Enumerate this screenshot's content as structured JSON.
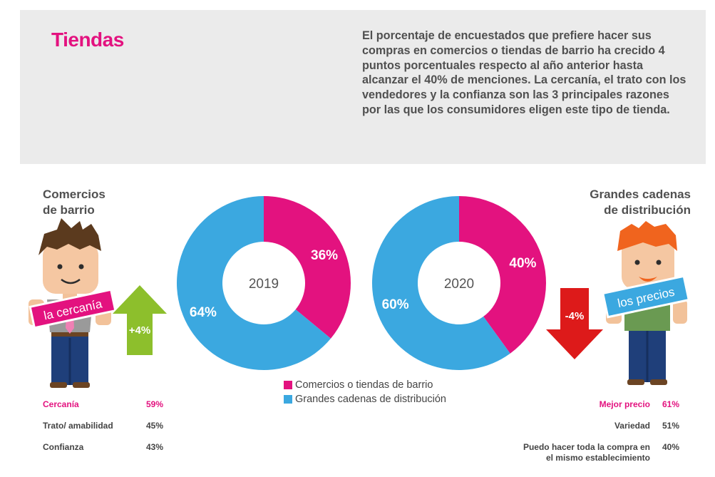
{
  "header": {
    "title": "Tiendas",
    "intro": "El porcentaje de encuestados que prefiere hacer sus compras en comercios o tiendas de barrio ha crecido 4 puntos porcentuales respecto al año anterior hasta alcanzar el 40% de menciones. La cercanía, el trato con los vendedores y la confianza son las 3 principales razones por las que los consumidores eligen este tipo de tienda."
  },
  "left": {
    "title_line1": "Comercios",
    "title_line2": "de barrio",
    "sign": "la cercanía",
    "change": "+4%",
    "stats": [
      {
        "label": "Cercanía",
        "value": "59%"
      },
      {
        "label": "Trato/ amabilidad",
        "value": "45%"
      },
      {
        "label": "Confianza",
        "value": "43%"
      }
    ]
  },
  "right": {
    "title_line1": "Grandes cadenas",
    "title_line2": "de distribución",
    "sign": "los precios",
    "change": "-4%",
    "stats": [
      {
        "label": "Mejor precio",
        "value": "61%"
      },
      {
        "label": "Variedad",
        "value": "51%"
      },
      {
        "label_line1": "Puedo hacer toda la compra en",
        "label_line2": "el mismo establecimiento",
        "value": "40%"
      }
    ]
  },
  "colors": {
    "magenta": "#e3127f",
    "blue": "#3ba8e0",
    "green": "#8dbf2c",
    "red": "#dd1a1a"
  },
  "chart_data": {
    "type": "pie",
    "series_names": [
      "Comercios o tiendas de barrio",
      "Grandes cadenas de distribución"
    ],
    "charts": [
      {
        "center_label": "2019",
        "values": [
          36,
          64
        ],
        "labels": [
          "36%",
          "64%"
        ]
      },
      {
        "center_label": "2020",
        "values": [
          40,
          60
        ],
        "labels": [
          "40%",
          "60%"
        ]
      }
    ]
  }
}
